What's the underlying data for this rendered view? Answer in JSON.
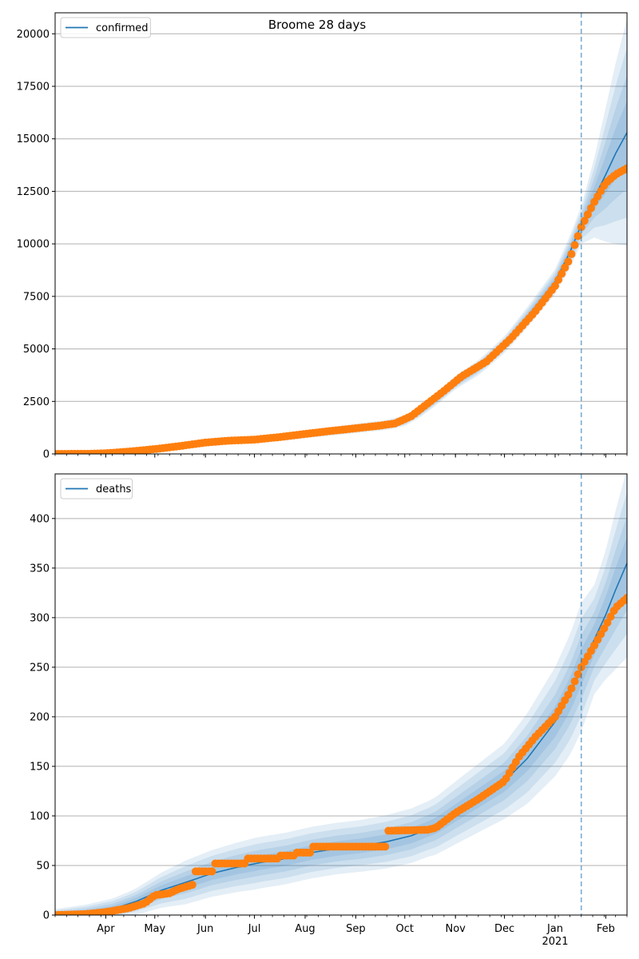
{
  "figure": {
    "title": "Broome 28 days"
  },
  "colors": {
    "model": "#1f77b4",
    "observed": "#ff7f0e",
    "band": "#1f77b4",
    "cutoff": "#1f77b4",
    "grid": "#b0b0b0"
  },
  "chart_data": [
    {
      "type": "line",
      "title": "Broome 28 days",
      "legend": {
        "label": "confirmed",
        "placement": "upper-left"
      },
      "x_range": [
        "2020-03-01",
        "2021-02-14"
      ],
      "ylim": [
        0,
        21000
      ],
      "yticks": [
        0,
        2500,
        5000,
        7500,
        10000,
        12500,
        15000,
        17500,
        20000
      ],
      "grid": "y-major",
      "cutoff_date": "2021-01-17",
      "model_median": [
        [
          "2020-03-01",
          0
        ],
        [
          "2020-03-20",
          10
        ],
        [
          "2020-04-05",
          60
        ],
        [
          "2020-04-20",
          160
        ],
        [
          "2020-05-05",
          300
        ],
        [
          "2020-05-20",
          430
        ],
        [
          "2020-06-05",
          580
        ],
        [
          "2020-06-20",
          660
        ],
        [
          "2020-07-05",
          710
        ],
        [
          "2020-07-20",
          810
        ],
        [
          "2020-08-05",
          980
        ],
        [
          "2020-08-20",
          1100
        ],
        [
          "2020-09-05",
          1250
        ],
        [
          "2020-09-20",
          1380
        ],
        [
          "2020-10-01",
          1580
        ],
        [
          "2020-10-10",
          2000
        ],
        [
          "2020-10-20",
          2600
        ],
        [
          "2020-11-01",
          3400
        ],
        [
          "2020-11-15",
          4100
        ],
        [
          "2020-12-01",
          5200
        ],
        [
          "2020-12-15",
          6500
        ],
        [
          "2021-01-01",
          8200
        ],
        [
          "2021-01-10",
          9600
        ],
        [
          "2021-01-17",
          10900
        ],
        [
          "2021-01-25",
          12200
        ],
        [
          "2021-02-01",
          13300
        ],
        [
          "2021-02-07",
          14300
        ],
        [
          "2021-02-14",
          15300
        ]
      ],
      "band_spread": [
        [
          "2020-03-01",
          30
        ],
        [
          "2020-10-01",
          250
        ],
        [
          "2020-12-01",
          400
        ],
        [
          "2021-01-01",
          600
        ],
        [
          "2021-01-17",
          900
        ],
        [
          "2021-01-25",
          1900
        ],
        [
          "2021-02-01",
          3200
        ],
        [
          "2021-02-07",
          4300
        ],
        [
          "2021-02-14",
          5400
        ]
      ],
      "observed": [
        [
          "2020-03-01",
          0
        ],
        [
          "2020-03-20",
          5
        ],
        [
          "2020-04-01",
          30
        ],
        [
          "2020-04-15",
          110
        ],
        [
          "2020-05-01",
          230
        ],
        [
          "2020-05-15",
          360
        ],
        [
          "2020-06-01",
          540
        ],
        [
          "2020-06-15",
          630
        ],
        [
          "2020-07-01",
          680
        ],
        [
          "2020-07-15",
          790
        ],
        [
          "2020-08-01",
          950
        ],
        [
          "2020-08-15",
          1080
        ],
        [
          "2020-09-01",
          1220
        ],
        [
          "2020-09-15",
          1340
        ],
        [
          "2020-09-25",
          1450
        ],
        [
          "2020-10-05",
          1800
        ],
        [
          "2020-10-15",
          2400
        ],
        [
          "2020-10-25",
          3000
        ],
        [
          "2020-11-05",
          3700
        ],
        [
          "2020-11-20",
          4400
        ],
        [
          "2020-12-05",
          5500
        ],
        [
          "2020-12-20",
          6800
        ],
        [
          "2021-01-01",
          8000
        ],
        [
          "2021-01-10",
          9300
        ],
        [
          "2021-01-17",
          10800
        ],
        [
          "2021-01-25",
          12000
        ],
        [
          "2021-02-01",
          12900
        ],
        [
          "2021-02-07",
          13300
        ],
        [
          "2021-02-14",
          13600
        ]
      ]
    },
    {
      "type": "line",
      "legend": {
        "label": "deaths",
        "placement": "upper-left"
      },
      "x_range": [
        "2020-03-01",
        "2021-02-14"
      ],
      "ylim": [
        0,
        445
      ],
      "yticks": [
        0,
        50,
        100,
        150,
        200,
        250,
        300,
        350,
        400
      ],
      "grid": "y-major",
      "cutoff_date": "2021-01-17",
      "model_median": [
        [
          "2020-03-01",
          0
        ],
        [
          "2020-03-20",
          2
        ],
        [
          "2020-04-05",
          6
        ],
        [
          "2020-04-20",
          14
        ],
        [
          "2020-05-05",
          25
        ],
        [
          "2020-05-20",
          33
        ],
        [
          "2020-06-05",
          42
        ],
        [
          "2020-06-20",
          48
        ],
        [
          "2020-07-05",
          53
        ],
        [
          "2020-07-20",
          57
        ],
        [
          "2020-08-05",
          63
        ],
        [
          "2020-08-20",
          67
        ],
        [
          "2020-09-05",
          70
        ],
        [
          "2020-09-20",
          74
        ],
        [
          "2020-10-05",
          80
        ],
        [
          "2020-10-20",
          90
        ],
        [
          "2020-11-01",
          103
        ],
        [
          "2020-11-15",
          118
        ],
        [
          "2020-12-01",
          135
        ],
        [
          "2020-12-15",
          158
        ],
        [
          "2021-01-01",
          195
        ],
        [
          "2021-01-10",
          222
        ],
        [
          "2021-01-17",
          250
        ],
        [
          "2021-01-25",
          278
        ],
        [
          "2021-02-01",
          303
        ],
        [
          "2021-02-07",
          328
        ],
        [
          "2021-02-14",
          355
        ]
      ],
      "band_spread": [
        [
          "2020-03-01",
          6
        ],
        [
          "2020-04-15",
          12
        ],
        [
          "2020-05-20",
          22
        ],
        [
          "2020-07-01",
          26
        ],
        [
          "2020-09-01",
          26
        ],
        [
          "2020-10-15",
          28
        ],
        [
          "2020-12-01",
          38
        ],
        [
          "2021-01-01",
          55
        ],
        [
          "2021-01-17",
          65
        ],
        [
          "2021-01-25",
          55
        ],
        [
          "2021-02-01",
          65
        ],
        [
          "2021-02-07",
          80
        ],
        [
          "2021-02-14",
          95
        ]
      ],
      "observed": [
        [
          "2020-03-01",
          0
        ],
        [
          "2020-03-20",
          1
        ],
        [
          "2020-04-01",
          3
        ],
        [
          "2020-04-15",
          7
        ],
        [
          "2020-04-25",
          12
        ],
        [
          "2020-05-01",
          20
        ],
        [
          "2020-05-10",
          22
        ],
        [
          "2020-05-15",
          26
        ],
        [
          "2020-05-25",
          31
        ],
        [
          "2020-05-26",
          44
        ],
        [
          "2020-06-05",
          44
        ],
        [
          "2020-06-06",
          52
        ],
        [
          "2020-06-25",
          52
        ],
        [
          "2020-06-26",
          57
        ],
        [
          "2020-07-15",
          57
        ],
        [
          "2020-07-16",
          60
        ],
        [
          "2020-07-25",
          60
        ],
        [
          "2020-07-26",
          63
        ],
        [
          "2020-08-05",
          63
        ],
        [
          "2020-08-06",
          69
        ],
        [
          "2020-09-20",
          69
        ],
        [
          "2020-09-21",
          85
        ],
        [
          "2020-10-15",
          86
        ],
        [
          "2020-10-20",
          88
        ],
        [
          "2020-11-01",
          103
        ],
        [
          "2020-11-15",
          117
        ],
        [
          "2020-12-01",
          135
        ],
        [
          "2020-12-10",
          160
        ],
        [
          "2020-12-20",
          180
        ],
        [
          "2021-01-01",
          200
        ],
        [
          "2021-01-10",
          225
        ],
        [
          "2021-01-17",
          250
        ],
        [
          "2021-01-25",
          272
        ],
        [
          "2021-02-01",
          292
        ],
        [
          "2021-02-07",
          310
        ],
        [
          "2021-02-14",
          320
        ]
      ]
    }
  ],
  "x_axis": {
    "tick_labels": [
      {
        "label": "Apr",
        "date": "2020-04-01"
      },
      {
        "label": "May",
        "date": "2020-05-01"
      },
      {
        "label": "Jun",
        "date": "2020-06-01"
      },
      {
        "label": "Jul",
        "date": "2020-07-01"
      },
      {
        "label": "Aug",
        "date": "2020-08-01"
      },
      {
        "label": "Sep",
        "date": "2020-09-01"
      },
      {
        "label": "Oct",
        "date": "2020-10-01"
      },
      {
        "label": "Nov",
        "date": "2020-11-01"
      },
      {
        "label": "Dec",
        "date": "2020-12-01"
      },
      {
        "label": "Jan",
        "date": "2021-01-01"
      },
      {
        "label": "Feb",
        "date": "2021-02-01"
      }
    ],
    "year_label": "2021",
    "year_label_date": "2021-01-01"
  }
}
